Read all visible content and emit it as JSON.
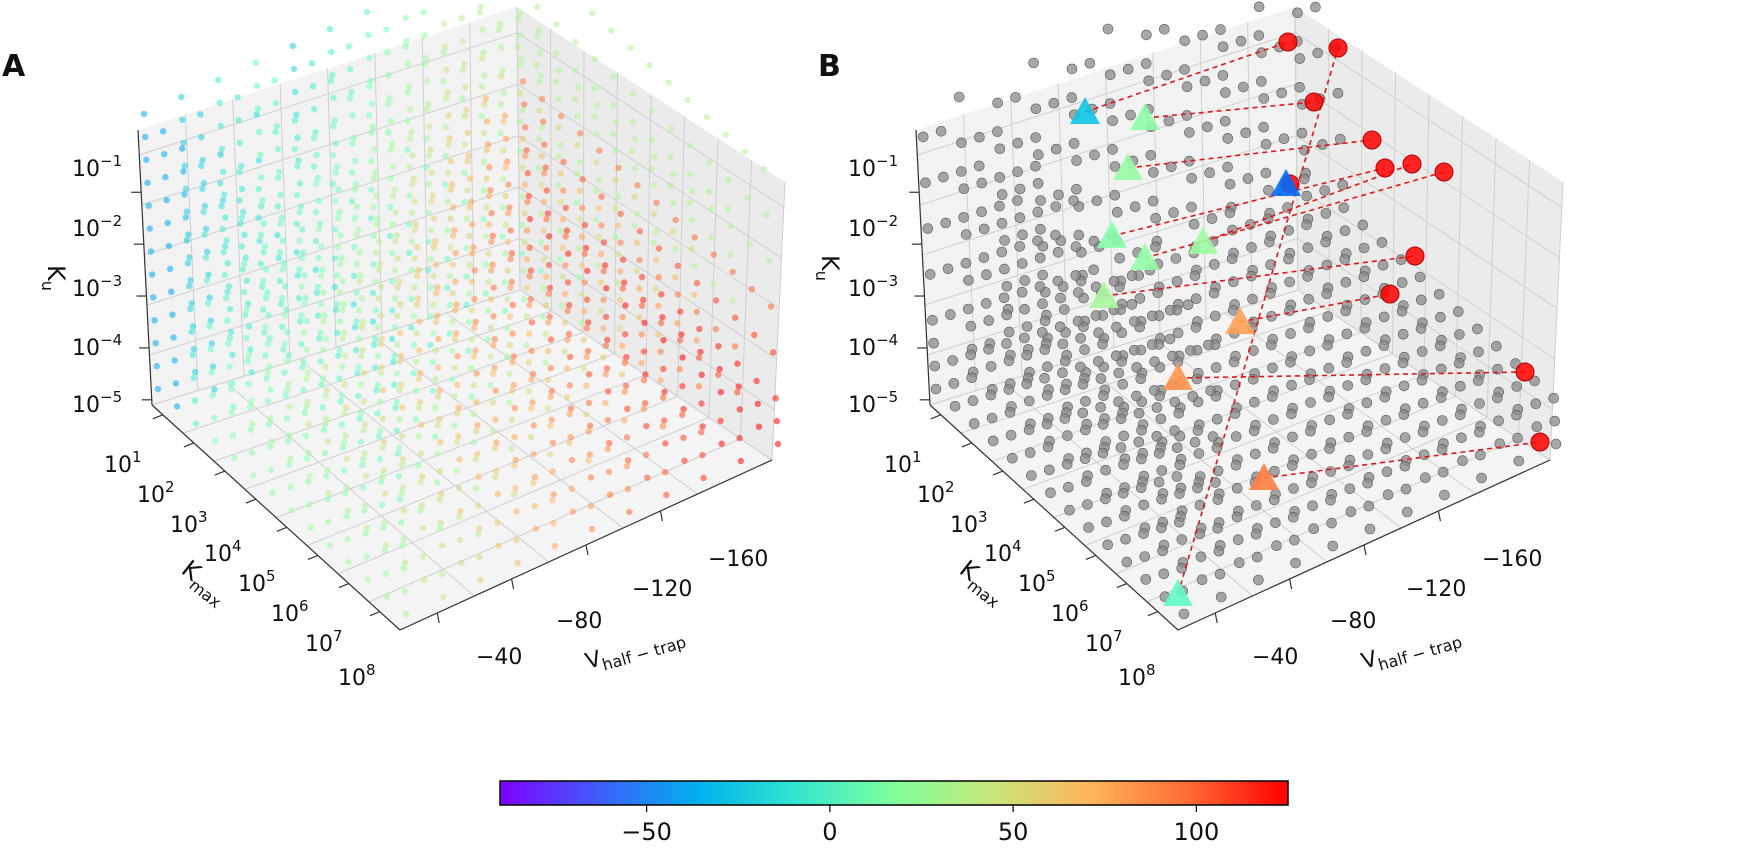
{
  "chart_data": [
    {
      "panel": "A",
      "type": "scatter",
      "subtype": "3d-scatter-grid",
      "title": "",
      "xlabel": "V_half-trap",
      "ylabel": "K_max",
      "zlabel": "K_u",
      "x_ticks": [
        "−40",
        "−80",
        "−120",
        "−160"
      ],
      "y_ticks": [
        "10^1",
        "10^2",
        "10^3",
        "10^4",
        "10^5",
        "10^6",
        "10^7",
        "10^8"
      ],
      "z_ticks": [
        "10^-5",
        "10^-4",
        "10^-3",
        "10^-2",
        "10^-1"
      ],
      "x_range": [
        -20,
        -200
      ],
      "y_range_log10": [
        1,
        8
      ],
      "z_range_log10": [
        -5,
        -0.3
      ],
      "grid": true,
      "description": "Dense grid of parameter samples colored by value; blue/cyan near large K_u at small |V|, green on outer faces, red/orange concentrated in the interior and at large |V_half-trap|."
    },
    {
      "panel": "B",
      "type": "scatter",
      "subtype": "3d-scatter-grid",
      "title": "",
      "xlabel": "V_half-trap",
      "ylabel": "K_max",
      "zlabel": "K_u",
      "x_ticks": [
        "−40",
        "−80",
        "−120",
        "−160"
      ],
      "y_ticks": [
        "10^1",
        "10^2",
        "10^3",
        "10^4",
        "10^5",
        "10^6",
        "10^7",
        "10^8"
      ],
      "z_ticks": [
        "10^-5",
        "10^-4",
        "10^-3",
        "10^-2",
        "10^-1"
      ],
      "grid": true,
      "background_points_color": "#808080",
      "markers": [
        {
          "shape": "triangle",
          "value": -30
        },
        {
          "shape": "triangle",
          "value": 25
        },
        {
          "shape": "triangle",
          "value": 28
        },
        {
          "shape": "triangle",
          "value": 22
        },
        {
          "shape": "triangle",
          "value": 30
        },
        {
          "shape": "triangle",
          "value": 26
        },
        {
          "shape": "triangle",
          "value": 35
        },
        {
          "shape": "triangle",
          "value": -60
        },
        {
          "shape": "triangle",
          "value": 78
        },
        {
          "shape": "triangle",
          "value": 82
        },
        {
          "shape": "triangle",
          "value": 90
        },
        {
          "shape": "triangle",
          "value": 5
        }
      ],
      "projections": {
        "shape": "circle",
        "color": "#ff0000",
        "count": 12,
        "line_style": "dashed"
      }
    }
  ],
  "colorbar": {
    "min": -90,
    "max": 125,
    "ticks": [
      -50,
      0,
      50,
      100
    ],
    "tick_labels": [
      "−50",
      "0",
      "50",
      "100"
    ],
    "colormap": "rainbow"
  },
  "panel_labels": [
    "A",
    "B"
  ],
  "colors": {
    "grid": "#cfcfcf",
    "pane_left": "#f2f2f2",
    "pane_back": "#ebebeb",
    "pane_floor": "#f4f4f4",
    "projection_line": "#e01818"
  }
}
